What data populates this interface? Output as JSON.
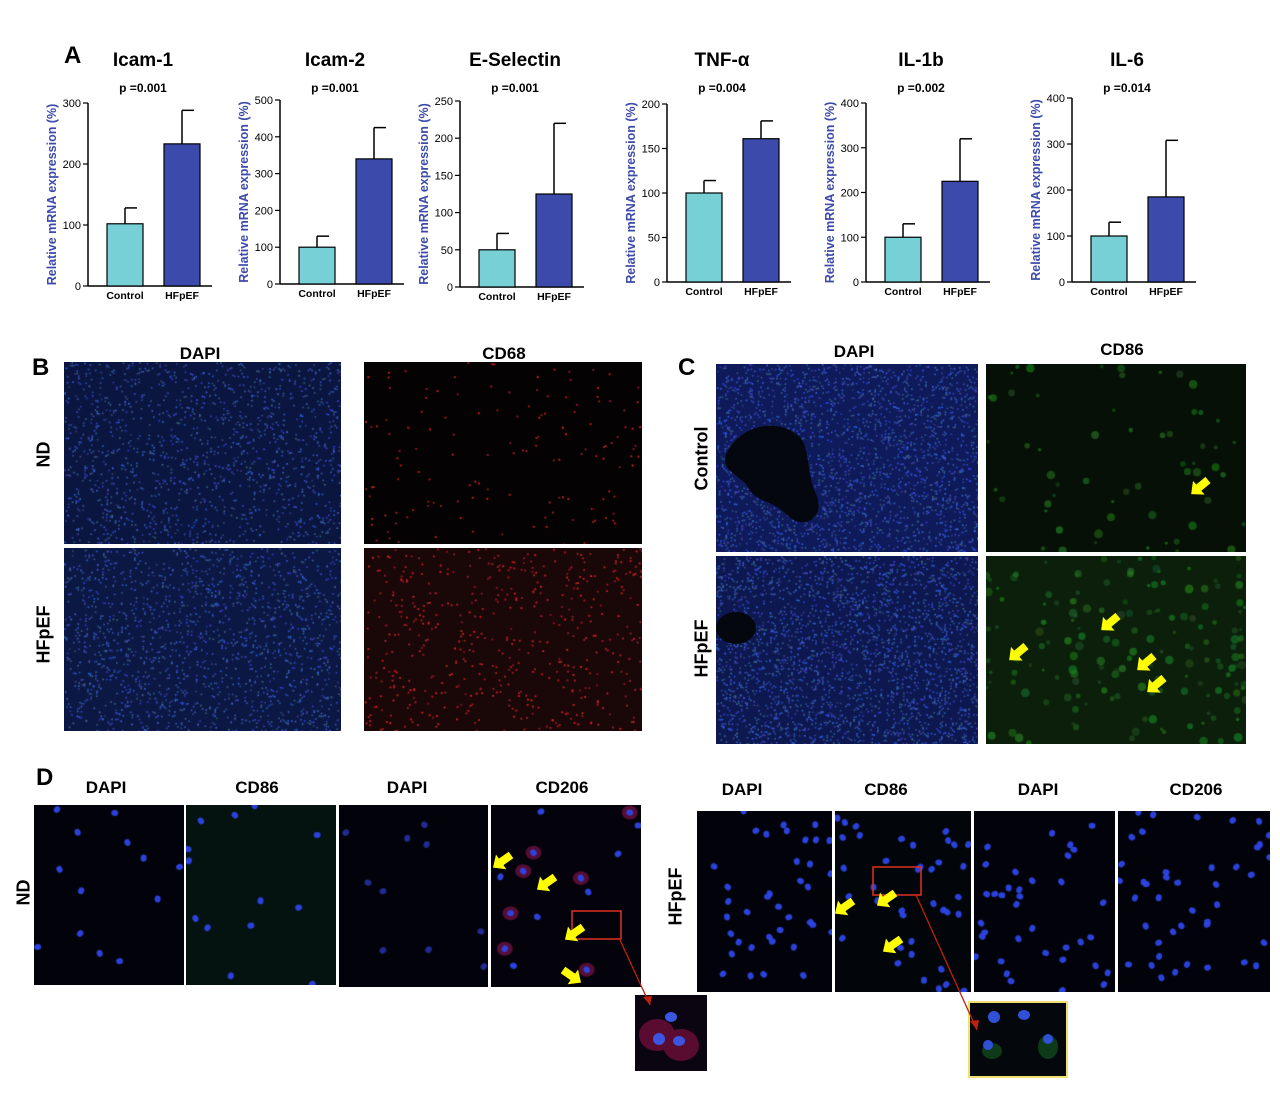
{
  "panels": {
    "a": "A",
    "b": "B",
    "c": "C",
    "d": "D"
  },
  "chart_data": [
    {
      "type": "bar",
      "title": "Icam-1",
      "pvalue": "p =0.001",
      "ylabel": "Relative mRNA expression (%)",
      "categories": [
        "Control",
        "HFpEF"
      ],
      "values": [
        102,
        233
      ],
      "errors": [
        26,
        55
      ],
      "ylim": [
        0,
        300
      ],
      "ticks": [
        0,
        100,
        200,
        300
      ],
      "colors": [
        "#76d0d6",
        "#3c4aab"
      ]
    },
    {
      "type": "bar",
      "title": "Icam-2",
      "pvalue": "p =0.001",
      "ylabel": "Relative mRNA expression (%)",
      "categories": [
        "Control",
        "HFpEF"
      ],
      "values": [
        100,
        340
      ],
      "errors": [
        30,
        85
      ],
      "ylim": [
        0,
        500
      ],
      "ticks": [
        0,
        100,
        200,
        300,
        400,
        500
      ],
      "colors": [
        "#76d0d6",
        "#3c4aab"
      ]
    },
    {
      "type": "bar",
      "title": "E-Selectin",
      "pvalue": "p =0.001",
      "ylabel": "Relative mRNA expression (%)",
      "categories": [
        "Control",
        "HFpEF"
      ],
      "values": [
        50,
        125
      ],
      "errors": [
        22,
        95
      ],
      "ylim": [
        0,
        250
      ],
      "ticks": [
        0,
        50,
        100,
        150,
        200,
        250
      ],
      "colors": [
        "#76d0d6",
        "#3c4aab"
      ]
    },
    {
      "type": "bar",
      "title": "TNF-α",
      "pvalue": "p =0.004",
      "ylabel": "Relative mRNA expression (%)",
      "categories": [
        "Control",
        "HFpEF"
      ],
      "values": [
        100,
        161
      ],
      "errors": [
        14,
        20
      ],
      "ylim": [
        0,
        200
      ],
      "ticks": [
        0,
        50,
        100,
        150,
        200
      ],
      "colors": [
        "#76d0d6",
        "#3c4aab"
      ]
    },
    {
      "type": "bar",
      "title": "IL-1b",
      "pvalue": "p =0.002",
      "ylabel": "Relative mRNA expression (%)",
      "categories": [
        "Control",
        "HFpEF"
      ],
      "values": [
        100,
        225
      ],
      "errors": [
        30,
        95
      ],
      "ylim": [
        0,
        400
      ],
      "ticks": [
        0,
        100,
        200,
        300,
        400
      ],
      "colors": [
        "#76d0d6",
        "#3c4aab"
      ]
    },
    {
      "type": "bar",
      "title": "IL-6",
      "pvalue": "p =0.014",
      "ylabel": "Relative mRNA expression (%)",
      "categories": [
        "Control",
        "HFpEF"
      ],
      "values": [
        100,
        185
      ],
      "errors": [
        30,
        123
      ],
      "ylim": [
        0,
        400
      ],
      "ticks": [
        0,
        100,
        200,
        300,
        400
      ],
      "colors": [
        "#76d0d6",
        "#3c4aab"
      ]
    }
  ],
  "panel_b": {
    "col_dapi": "DAPI",
    "col_cd68": "CD68",
    "row_nd": "ND",
    "row_hfpef": "HFpEF"
  },
  "panel_c": {
    "col_dapi": "DAPI",
    "col_cd86": "CD86",
    "row_control": "Control",
    "row_hfpef": "HFpEF"
  },
  "panel_d": {
    "left": {
      "h1": "DAPI",
      "h2": "CD86",
      "h3": "DAPI",
      "h4": "CD206",
      "row": "ND"
    },
    "right": {
      "h1": "DAPI",
      "h2": "CD86",
      "h3": "DAPI",
      "h4": "CD206",
      "row": "HFpEF"
    }
  },
  "colors": {
    "control": "#76d0d6",
    "hfpef": "#3c4aab",
    "axis_label": "#3c4aab",
    "arrow": "#ffff00",
    "box": "#e03020"
  }
}
